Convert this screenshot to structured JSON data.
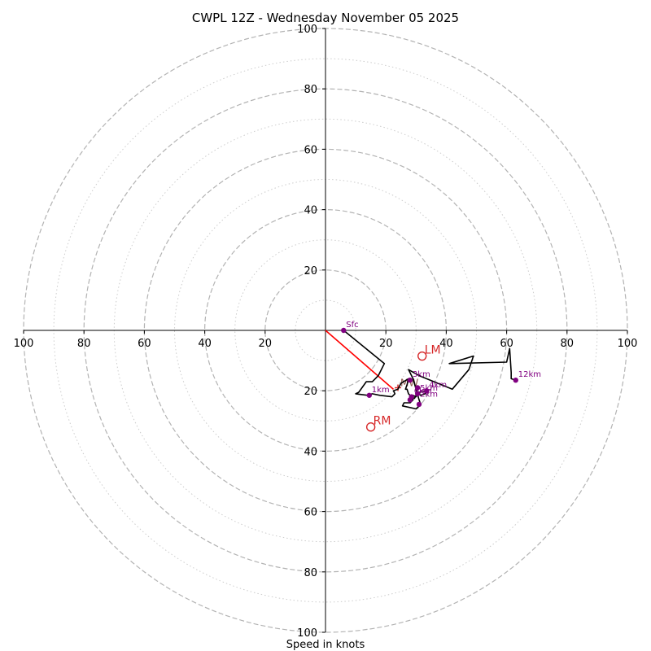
{
  "chart_data": {
    "type": "hodograph",
    "title": "CWPL 12Z - Wednesday November 05 2025",
    "xlabel": "Speed in knots",
    "range": [
      -100,
      100
    ],
    "major_rings": [
      20,
      40,
      60,
      80,
      100
    ],
    "minor_rings": [
      10,
      30,
      50,
      70,
      90
    ],
    "tick_values": [
      20,
      40,
      60,
      80,
      100
    ],
    "x_tick_labels": [
      "100",
      "80",
      "60",
      "40",
      "20",
      "20",
      "40",
      "60",
      "80",
      "100"
    ],
    "y_tick_labels": [
      "100",
      "80",
      "60",
      "40",
      "20",
      "20",
      "40",
      "60",
      "80",
      "100"
    ],
    "hodograph_trace": [
      [
        6,
        0
      ],
      [
        19.5,
        -11
      ],
      [
        17.5,
        -15
      ],
      [
        16,
        -16.5
      ],
      [
        15.5,
        -17
      ],
      [
        13.5,
        -17
      ],
      [
        11,
        -20.5
      ],
      [
        10,
        -21
      ],
      [
        14,
        -21.5
      ],
      [
        15.5,
        -21
      ],
      [
        18,
        -21.5
      ],
      [
        22,
        -22
      ],
      [
        23,
        -21
      ],
      [
        22.5,
        -20
      ],
      [
        24,
        -19.5
      ],
      [
        25,
        -17.5
      ],
      [
        27.5,
        -16
      ],
      [
        27,
        -18
      ],
      [
        26.5,
        -19.5
      ],
      [
        27,
        -19.5
      ],
      [
        27.5,
        -21
      ],
      [
        28.5,
        -22
      ],
      [
        29.5,
        -22.5
      ],
      [
        30,
        -21.5
      ],
      [
        31,
        -21
      ],
      [
        31.5,
        -21.5
      ],
      [
        33,
        -21
      ],
      [
        34,
        -20
      ],
      [
        31,
        -20.5
      ],
      [
        30,
        -22
      ],
      [
        29,
        -21.5
      ],
      [
        29,
        -23
      ],
      [
        28,
        -24
      ],
      [
        26,
        -24
      ],
      [
        25.5,
        -25
      ],
      [
        30,
        -26
      ],
      [
        31.5,
        -24.5
      ],
      [
        31,
        -23
      ],
      [
        29,
        -16
      ],
      [
        27.5,
        -13
      ],
      [
        31,
        -15
      ],
      [
        42,
        -19.5
      ],
      [
        47.5,
        -13
      ],
      [
        49,
        -8.5
      ],
      [
        41,
        -11
      ],
      [
        60,
        -10.5
      ],
      [
        61,
        -6
      ],
      [
        61.5,
        -14
      ],
      [
        61.5,
        -16
      ],
      [
        63,
        -16.5
      ]
    ],
    "height_markers": [
      {
        "label": "Sfc",
        "u": 6,
        "v": 0
      },
      {
        "label": "1km",
        "u": 14.5,
        "v": -21.5
      },
      {
        "label": "3km",
        "u": 28,
        "v": -16.5
      },
      {
        "label": "4km",
        "u": 33.5,
        "v": -20
      },
      {
        "label": "5km",
        "u": 30.5,
        "v": -21
      },
      {
        "label": "6km",
        "u": 28.5,
        "v": -22
      },
      {
        "label": "12km",
        "u": 63,
        "v": -16.5
      },
      {
        "label": "",
        "u": 31,
        "v": -24.5
      },
      {
        "label": "",
        "u": 30.5,
        "v": -19
      },
      {
        "label": "",
        "u": 28,
        "v": -23
      }
    ],
    "labels_without_marker": [
      {
        "label": "2km",
        "u": 30.5,
        "v": -23
      }
    ],
    "storm_motion": {
      "lm": {
        "label": "LM",
        "u": 32,
        "v": -8.5
      },
      "rm": {
        "label": "RM",
        "u": 15,
        "v": -32
      },
      "mw": {
        "label": "MW",
        "u": 24,
        "v": -19
      },
      "vector_end": {
        "u": 22.5,
        "v": -19.5
      }
    },
    "colors": {
      "trace": "#000000",
      "markers": "#800080",
      "storm": "#d62728",
      "vector": "#ff0000",
      "rings": "#b3b3b3",
      "axes": "#000000"
    }
  }
}
